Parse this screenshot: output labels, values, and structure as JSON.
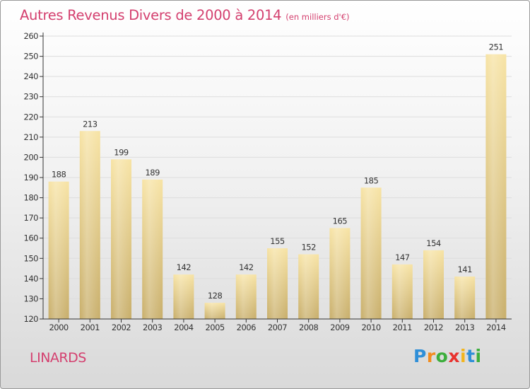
{
  "title": "Autres Revenus Divers de 2000 à 2014",
  "subtitle": "(en milliers d'€)",
  "location": "LINARDS",
  "logo": {
    "letters": [
      "P",
      "r",
      "o",
      "x",
      "i",
      "t",
      "i"
    ],
    "colors": [
      "#2f8fd8",
      "#f28c1e",
      "#3cae3c",
      "#e8322e",
      "#f2b51e",
      "#2f8fd8",
      "#3cae3c"
    ]
  },
  "colors": {
    "accent": "#d4406f",
    "bar_light": "#f7e3a4",
    "bar_dark": "#c8ae6a",
    "axis": "#333333",
    "grid": "#dddddd"
  },
  "chart_data": {
    "type": "bar",
    "title": "Autres Revenus Divers de 2000 à 2014",
    "xlabel": "",
    "ylabel": "",
    "categories": [
      "2000",
      "2001",
      "2002",
      "2003",
      "2004",
      "2005",
      "2006",
      "2007",
      "2008",
      "2009",
      "2010",
      "2011",
      "2012",
      "2013",
      "2014"
    ],
    "values": [
      188,
      213,
      199,
      189,
      142,
      128,
      142,
      155,
      152,
      165,
      185,
      147,
      154,
      141,
      251
    ],
    "ylim": [
      120,
      260
    ],
    "yticks": [
      120,
      130,
      140,
      150,
      160,
      170,
      180,
      190,
      200,
      210,
      220,
      230,
      240,
      250,
      260
    ],
    "grid": true,
    "legend": "none"
  }
}
